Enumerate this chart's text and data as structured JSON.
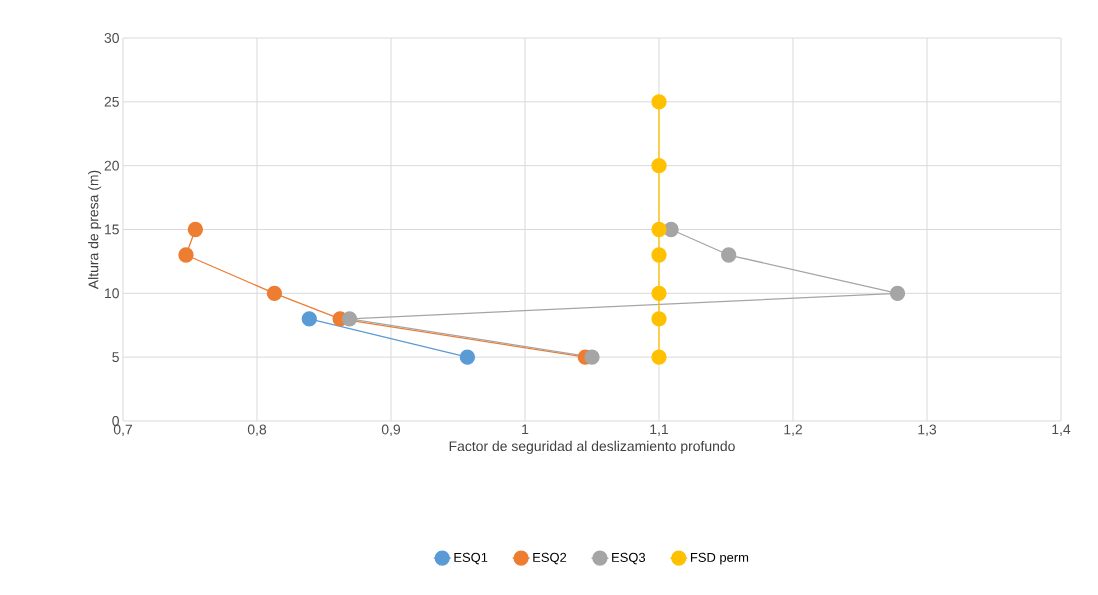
{
  "chart_data": {
    "type": "line",
    "xlabel": "Factor de seguridad al deslizamiento profundo",
    "ylabel": "Altura de presa (m)",
    "xlim": [
      0.7,
      1.4
    ],
    "ylim": [
      0,
      30
    ],
    "xticks": [
      {
        "value": 0.7,
        "label": "0,7"
      },
      {
        "value": 0.8,
        "label": "0,8"
      },
      {
        "value": 0.9,
        "label": "0,9"
      },
      1,
      {
        "value": 1.1,
        "label": "1,1"
      },
      {
        "value": 1.2,
        "label": "1,2"
      },
      {
        "value": 1.3,
        "label": "1,3"
      },
      {
        "value": 1.4,
        "label": "1,4"
      }
    ],
    "yticks": [
      0,
      5,
      10,
      15,
      20,
      25,
      30
    ],
    "grid": true,
    "legend": "bottom",
    "marker": "circle",
    "line_style": "solid",
    "series": [
      {
        "name": "ESQ1",
        "color": "#5b9bd5",
        "x": [
          0.957,
          0.839
        ],
        "values": [
          5,
          8
        ]
      },
      {
        "name": "ESQ2",
        "color": "#ed7d31",
        "x": [
          1.045,
          0.862,
          0.813,
          0.747,
          0.754
        ],
        "values": [
          5,
          8,
          10,
          13,
          15
        ]
      },
      {
        "name": "ESQ3",
        "color": "#a5a5a5",
        "x": [
          1.05,
          0.869,
          1.278,
          1.152,
          1.109
        ],
        "values": [
          5,
          8,
          10,
          13,
          15
        ]
      },
      {
        "name": "FSD perm",
        "color": "#ffc000",
        "x": [
          1.1,
          1.1,
          1.1,
          1.1,
          1.1,
          1.1,
          1.1
        ],
        "values": [
          5,
          8,
          10,
          13,
          15,
          20,
          25
        ]
      }
    ]
  }
}
